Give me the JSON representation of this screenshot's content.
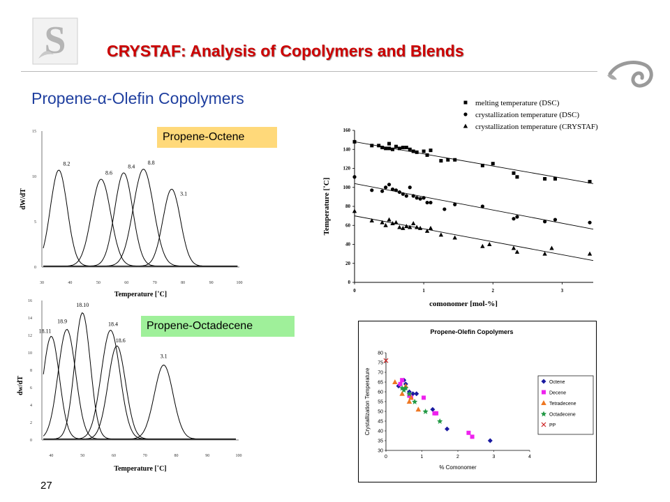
{
  "header": {
    "title": "CRYSTAF: Analysis of Copolymers and Blends",
    "subtitle_prefix": "Propene-",
    "subtitle_alpha": "α",
    "subtitle_suffix": "-Olefin Copolymers"
  },
  "labels": {
    "octene": "Propene-Octene",
    "octadecene": "Propene-Octadecene"
  },
  "page_number": "27",
  "chart_data": [
    {
      "type": "line",
      "xlabel": "Temperature [˚C]",
      "ylabel": "dW/dT",
      "xticks": [
        "30",
        "40",
        "50",
        "60",
        "70",
        "80",
        "90",
        "100"
      ],
      "yticks": [
        "0",
        "5",
        "10",
        "15"
      ],
      "xlim": [
        30,
        100
      ],
      "ylim": [
        0,
        15
      ],
      "series": [
        {
          "name": "8.2",
          "peak_x": 36,
          "peak_y": 10.6
        },
        {
          "name": "8.6",
          "peak_x": 51,
          "peak_y": 9.6
        },
        {
          "name": "8.4",
          "peak_x": 59,
          "peak_y": 10.3
        },
        {
          "name": "8.8",
          "peak_x": 66,
          "peak_y": 10.7
        },
        {
          "name": "3.1",
          "peak_x": 76,
          "peak_y": 8.5
        }
      ]
    },
    {
      "type": "line",
      "xlabel": "Temperature [˚C]",
      "ylabel": "dw/dT",
      "xticks": [
        "40",
        "50",
        "60",
        "70",
        "80",
        "90",
        "100"
      ],
      "yticks": [
        "0",
        "2",
        "4",
        "6",
        "8",
        "10",
        "12",
        "14",
        "16"
      ],
      "xlim": [
        37,
        100
      ],
      "ylim": [
        0,
        16
      ],
      "series": [
        {
          "name": "18.11",
          "peak_x": 40,
          "peak_y": 11.8
        },
        {
          "name": "18.9",
          "peak_x": 45,
          "peak_y": 12.6
        },
        {
          "name": "18.10",
          "peak_x": 50,
          "peak_y": 14.5
        },
        {
          "name": "18.4",
          "peak_x": 59,
          "peak_y": 12.5
        },
        {
          "name": "18.6",
          "peak_x": 61,
          "peak_y": 10.7
        },
        {
          "name": "3.1",
          "peak_x": 76,
          "peak_y": 8.5
        }
      ]
    },
    {
      "type": "scatter",
      "xlabel": "comonomer [mol-%]",
      "ylabel": "Temperature [˚C]",
      "xticks": [
        "0",
        "1",
        "2",
        "3"
      ],
      "yticks": [
        "0",
        "20",
        "40",
        "60",
        "80",
        "100",
        "120",
        "140",
        "160"
      ],
      "xlim": [
        0,
        3.45
      ],
      "ylim": [
        0,
        160
      ],
      "legend_position": "top",
      "series": [
        {
          "name": "melting temperature (DSC)",
          "marker": "square",
          "x": [
            0.0,
            0.25,
            0.35,
            0.4,
            0.45,
            0.5,
            0.5,
            0.55,
            0.6,
            0.65,
            0.7,
            0.75,
            0.8,
            0.85,
            0.9,
            1.0,
            1.05,
            1.1,
            1.25,
            1.35,
            1.45,
            1.85,
            2.0,
            2.3,
            2.35,
            2.75,
            2.9,
            3.4
          ],
          "y": [
            148,
            144,
            144,
            142,
            141,
            146,
            141,
            140,
            143,
            141,
            142,
            142,
            140,
            138,
            137,
            138,
            134,
            139,
            128,
            129,
            129,
            123,
            125,
            115,
            111,
            109,
            109,
            106
          ],
          "trend": [
            [
              0,
              148
            ],
            [
              3.45,
              104
            ]
          ]
        },
        {
          "name": "crystallization temperature (DSC)",
          "marker": "circle",
          "x": [
            0.0,
            0.25,
            0.4,
            0.45,
            0.5,
            0.55,
            0.6,
            0.65,
            0.7,
            0.75,
            0.8,
            0.85,
            0.9,
            0.95,
            1.0,
            1.05,
            1.1,
            1.3,
            1.45,
            1.85,
            2.3,
            2.35,
            2.75,
            2.9,
            3.4
          ],
          "y": [
            111,
            97,
            96,
            100,
            103,
            98,
            97,
            95,
            93,
            91,
            100,
            91,
            89,
            88,
            89,
            84,
            84,
            77,
            82,
            80,
            67,
            69,
            64,
            66,
            63
          ],
          "trend": [
            [
              0,
              104
            ],
            [
              3.45,
              56
            ]
          ]
        },
        {
          "name": "crystallization temperature (CRYSTAF)",
          "marker": "triangle",
          "x": [
            0.0,
            0.25,
            0.4,
            0.45,
            0.5,
            0.55,
            0.6,
            0.65,
            0.7,
            0.75,
            0.8,
            0.85,
            0.9,
            0.95,
            1.05,
            1.1,
            1.25,
            1.45,
            1.85,
            1.95,
            2.3,
            2.35,
            2.75,
            2.85,
            3.4
          ],
          "y": [
            75,
            65,
            63,
            60,
            66,
            62,
            63,
            58,
            57,
            59,
            58,
            62,
            58,
            57,
            54,
            57,
            50,
            47,
            38,
            40,
            36,
            32,
            30,
            36,
            30
          ],
          "trend": [
            [
              0,
              70
            ],
            [
              3.45,
              23
            ]
          ]
        }
      ]
    },
    {
      "type": "scatter",
      "title": "Propene-Olefin Copolymers",
      "xlabel": "% Comonomer",
      "ylabel": "Crystallization Temperature",
      "xlim": [
        0,
        4
      ],
      "ylim": [
        30,
        80
      ],
      "xticks": [
        "0",
        "1",
        "2",
        "3",
        "4"
      ],
      "yticks": [
        "30",
        "35",
        "40",
        "45",
        "50",
        "55",
        "60",
        "65",
        "70",
        "75",
        "80"
      ],
      "legend_position": "right",
      "series": [
        {
          "name": "Octene",
          "color": "#1a1aa0",
          "marker": "diamond",
          "x": [
            0.35,
            0.5,
            0.55,
            0.65,
            0.75,
            0.85,
            1.3,
            1.7,
            2.9
          ],
          "y": [
            63,
            66,
            64,
            60,
            59,
            59,
            51,
            41,
            35
          ]
        },
        {
          "name": "Decene",
          "color": "#ee22ee",
          "marker": "square",
          "x": [
            0.4,
            0.45,
            0.65,
            0.7,
            1.05,
            1.35,
            1.4,
            2.3,
            2.4
          ],
          "y": [
            64,
            66,
            58,
            57,
            57,
            49,
            49,
            39,
            37
          ]
        },
        {
          "name": "Tetradecene",
          "color": "#ee7722",
          "marker": "triangle",
          "x": [
            0.25,
            0.45,
            0.55,
            0.65,
            0.7,
            0.9
          ],
          "y": [
            65,
            59,
            63,
            55,
            57,
            51
          ]
        },
        {
          "name": "Octadecene",
          "color": "#229944",
          "marker": "star",
          "x": [
            0.45,
            0.5,
            0.55,
            0.65,
            0.8,
            1.1,
            1.5
          ],
          "y": [
            62,
            61,
            62,
            59,
            55,
            50,
            45
          ]
        },
        {
          "name": "PP",
          "color": "#cc2222",
          "marker": "x",
          "x": [
            0.0
          ],
          "y": [
            76
          ]
        }
      ]
    }
  ]
}
